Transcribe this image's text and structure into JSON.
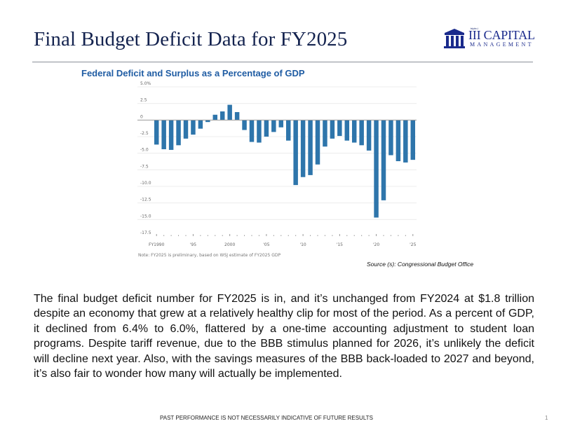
{
  "slide": {
    "title": "Final Budget Deficit Data for FY2025",
    "logo": {
      "tagline": "triple-i",
      "name": "III CAPITAL",
      "subname": "MANAGEMENT",
      "icon": "columns-building-icon"
    },
    "body": "The final budget deficit number for FY2025 is in, and it’s unchanged from FY2024 at $1.8 trillion despite an economy that grew at a relatively healthy clip for most of the period. As a percent of GDP, it declined from 6.4% to 6.0%, flattered by a one-time accounting adjustment to student loan programs. Despite tariff revenue, due to the BBB stimulus planned for 2026, it’s unlikely the deficit will decline next year. Also, with the savings measures of the BBB back-loaded to 2027 and beyond, it’s also fair to wonder how many will actually be implemented.",
    "footer": "PAST PERFORMANCE IS NOT NECESSARILY INDICATIVE OF FUTURE RESULTS",
    "page_number": "1"
  },
  "chart_data": {
    "type": "bar",
    "title": "Federal Deficit and Surplus as a Percentage of GDP",
    "xlabel": "",
    "ylabel": "",
    "ylim": [
      -17.5,
      5.0
    ],
    "yticks": [
      5.0,
      2.5,
      0,
      -2.5,
      -5.0,
      -7.5,
      -10.0,
      -12.5,
      -15.0,
      -17.5
    ],
    "ytick_labels": [
      "5.0%",
      "2.5",
      "0",
      "-2.5",
      "-5.0",
      "-7.5",
      "-10.0",
      "-12.5",
      "-15.0",
      "-17.5"
    ],
    "xtick_labels": [
      {
        "year": 1990,
        "label": "FY1990"
      },
      {
        "year": 1995,
        "label": "'95"
      },
      {
        "year": 2000,
        "label": "2000"
      },
      {
        "year": 2005,
        "label": "'05"
      },
      {
        "year": 2010,
        "label": "'10"
      },
      {
        "year": 2015,
        "label": "'15"
      },
      {
        "year": 2020,
        "label": "'20"
      },
      {
        "year": 2025,
        "label": "'25"
      }
    ],
    "grid": true,
    "color": "#2e75ab",
    "categories": [
      1990,
      1991,
      1992,
      1993,
      1994,
      1995,
      1996,
      1997,
      1998,
      1999,
      2000,
      2001,
      2002,
      2003,
      2004,
      2005,
      2006,
      2007,
      2008,
      2009,
      2010,
      2011,
      2012,
      2013,
      2014,
      2015,
      2016,
      2017,
      2018,
      2019,
      2020,
      2021,
      2022,
      2023,
      2024,
      2025
    ],
    "values": [
      -3.7,
      -4.4,
      -4.5,
      -3.8,
      -2.8,
      -2.2,
      -1.3,
      -0.3,
      0.8,
      1.3,
      2.3,
      1.2,
      -1.5,
      -3.3,
      -3.4,
      -2.5,
      -1.8,
      -1.1,
      -3.1,
      -9.8,
      -8.6,
      -8.3,
      -6.7,
      -4.0,
      -2.8,
      -2.4,
      -3.1,
      -3.4,
      -3.8,
      -4.6,
      -14.7,
      -12.1,
      -5.3,
      -6.2,
      -6.4,
      -6.0
    ],
    "note": "Note: FY2025 is preliminary, based on WSJ estimate of FY2025 GDP",
    "source": "Source (s): Congressional Budget Office"
  }
}
